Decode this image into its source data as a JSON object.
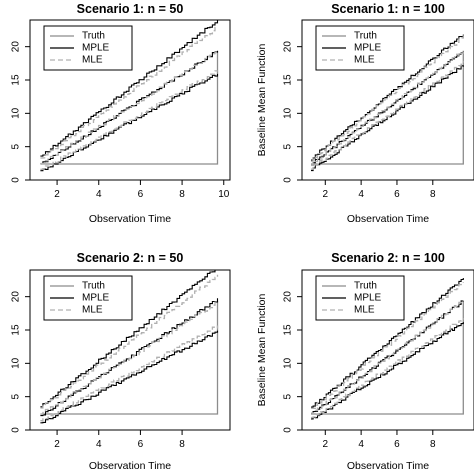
{
  "chart_data": [
    {
      "type": "line",
      "title": "Scenario 1: n = 50",
      "xlabel": "Observation Time",
      "ylabel": "",
      "xlim": [
        1,
        10
      ],
      "ylim": [
        0,
        24
      ],
      "xticks": [
        "2",
        "4",
        "6",
        "8",
        "10"
      ],
      "yticks": [
        "0",
        "5",
        "10",
        "15",
        "20"
      ],
      "legend": {
        "position": "top-left",
        "entries": [
          "Truth",
          "MPLE",
          "MLE"
        ]
      },
      "series": [
        {
          "name": "Truth",
          "color": "#8c8c8c",
          "style": "solid",
          "x": [
            1.2,
            9.7
          ],
          "y": [
            2.4,
            19.4
          ]
        },
        {
          "name": "MPLE",
          "color": "#000000",
          "style": "solid",
          "x": [
            1.2,
            9.7
          ],
          "y": [
            2.4,
            19.4
          ]
        },
        {
          "name": "MLE",
          "color": "#b0b0b0",
          "style": "dashed",
          "x": [
            1.2,
            9.7
          ],
          "y": [
            2.4,
            19.4
          ]
        },
        {
          "name": "MPLE upper",
          "color": "#000000",
          "style": "solid",
          "x": [
            1.2,
            9.7
          ],
          "y": [
            3.5,
            24.0
          ]
        },
        {
          "name": "MPLE lower",
          "color": "#000000",
          "style": "solid",
          "x": [
            1.2,
            9.7
          ],
          "y": [
            1.3,
            16.0
          ]
        },
        {
          "name": "MLE upper",
          "color": "#b0b0b0",
          "style": "dashed",
          "x": [
            1.2,
            9.7
          ],
          "y": [
            3.2,
            23.0
          ]
        },
        {
          "name": "MLE lower",
          "color": "#b0b0b0",
          "style": "dashed",
          "x": [
            1.2,
            9.7
          ],
          "y": [
            1.5,
            16.5
          ]
        }
      ]
    },
    {
      "type": "line",
      "title": "Scenario 1: n = 100",
      "xlabel": "Observation Time",
      "ylabel": "Baseline Mean Function",
      "xlim": [
        1,
        10
      ],
      "ylim": [
        0,
        24
      ],
      "xticks": [
        "2",
        "4",
        "6",
        "8"
      ],
      "yticks": [
        "0",
        "5",
        "10",
        "15",
        "20"
      ],
      "legend": {
        "position": "top-left",
        "entries": [
          "Truth",
          "MPLE",
          "MLE"
        ]
      },
      "series": [
        {
          "name": "Truth",
          "color": "#8c8c8c",
          "style": "solid",
          "x": [
            1.2,
            9.7
          ],
          "y": [
            2.4,
            19.4
          ]
        },
        {
          "name": "MPLE",
          "color": "#000000",
          "style": "solid",
          "x": [
            1.2,
            9.7
          ],
          "y": [
            2.4,
            19.4
          ]
        },
        {
          "name": "MLE",
          "color": "#b0b0b0",
          "style": "dashed",
          "x": [
            1.2,
            9.7
          ],
          "y": [
            2.4,
            19.4
          ]
        },
        {
          "name": "MPLE upper",
          "color": "#000000",
          "style": "solid",
          "x": [
            1.2,
            9.7
          ],
          "y": [
            3.2,
            22.0
          ]
        },
        {
          "name": "MPLE lower",
          "color": "#000000",
          "style": "solid",
          "x": [
            1.2,
            9.7
          ],
          "y": [
            1.6,
            17.2
          ]
        },
        {
          "name": "MLE upper",
          "color": "#b0b0b0",
          "style": "dashed",
          "x": [
            1.2,
            9.7
          ],
          "y": [
            3.0,
            21.5
          ]
        },
        {
          "name": "MLE lower",
          "color": "#b0b0b0",
          "style": "dashed",
          "x": [
            1.2,
            9.7
          ],
          "y": [
            1.8,
            17.6
          ]
        }
      ]
    },
    {
      "type": "line",
      "title": "Scenario 2: n = 50",
      "xlabel": "Observation Time",
      "ylabel": "",
      "xlim": [
        1,
        10
      ],
      "ylim": [
        0,
        24
      ],
      "xticks": [
        "2",
        "4",
        "6",
        "8"
      ],
      "yticks": [
        "0",
        "5",
        "10",
        "15",
        "20"
      ],
      "legend": {
        "position": "top-left",
        "entries": [
          "Truth",
          "MPLE",
          "MLE"
        ]
      },
      "series": [
        {
          "name": "Truth",
          "color": "#8c8c8c",
          "style": "solid",
          "x": [
            1.2,
            9.7
          ],
          "y": [
            2.4,
            19.4
          ]
        },
        {
          "name": "MPLE",
          "color": "#000000",
          "style": "solid",
          "x": [
            1.2,
            9.7
          ],
          "y": [
            2.2,
            19.6
          ]
        },
        {
          "name": "MLE",
          "color": "#b0b0b0",
          "style": "dashed",
          "x": [
            1.2,
            9.7
          ],
          "y": [
            2.4,
            19.2
          ]
        },
        {
          "name": "MPLE upper",
          "color": "#000000",
          "style": "solid",
          "x": [
            1.2,
            9.7
          ],
          "y": [
            3.5,
            24.5
          ]
        },
        {
          "name": "MPLE lower",
          "color": "#000000",
          "style": "solid",
          "x": [
            1.2,
            9.7
          ],
          "y": [
            1.1,
            14.8
          ]
        },
        {
          "name": "MLE upper",
          "color": "#b0b0b0",
          "style": "dashed",
          "x": [
            1.2,
            9.7
          ],
          "y": [
            3.3,
            23.2
          ]
        },
        {
          "name": "MLE lower",
          "color": "#b0b0b0",
          "style": "dashed",
          "x": [
            1.2,
            9.7
          ],
          "y": [
            1.4,
            15.6
          ]
        }
      ]
    },
    {
      "type": "line",
      "title": "Scenario 2: n = 100",
      "xlabel": "Observation Time",
      "ylabel": "Baseline Mean Function",
      "xlim": [
        1,
        10
      ],
      "ylim": [
        0,
        24
      ],
      "xticks": [
        "2",
        "4",
        "6",
        "8"
      ],
      "yticks": [
        "0",
        "5",
        "10",
        "15",
        "20"
      ],
      "legend": {
        "position": "top-left",
        "entries": [
          "Truth",
          "MPLE",
          "MLE"
        ]
      },
      "series": [
        {
          "name": "Truth",
          "color": "#8c8c8c",
          "style": "solid",
          "x": [
            1.2,
            9.7
          ],
          "y": [
            2.4,
            19.4
          ]
        },
        {
          "name": "MPLE",
          "color": "#000000",
          "style": "solid",
          "x": [
            1.2,
            9.7
          ],
          "y": [
            2.4,
            19.4
          ]
        },
        {
          "name": "MLE",
          "color": "#b0b0b0",
          "style": "dashed",
          "x": [
            1.2,
            9.7
          ],
          "y": [
            2.4,
            19.4
          ]
        },
        {
          "name": "MPLE upper",
          "color": "#000000",
          "style": "solid",
          "x": [
            1.2,
            9.7
          ],
          "y": [
            3.3,
            22.8
          ]
        },
        {
          "name": "MPLE lower",
          "color": "#000000",
          "style": "solid",
          "x": [
            1.2,
            9.7
          ],
          "y": [
            1.5,
            16.2
          ]
        },
        {
          "name": "MLE upper",
          "color": "#b0b0b0",
          "style": "dashed",
          "x": [
            1.2,
            9.7
          ],
          "y": [
            3.1,
            22.2
          ]
        },
        {
          "name": "MLE lower",
          "color": "#b0b0b0",
          "style": "dashed",
          "x": [
            1.2,
            9.7
          ],
          "y": [
            1.7,
            16.8
          ]
        }
      ]
    }
  ]
}
